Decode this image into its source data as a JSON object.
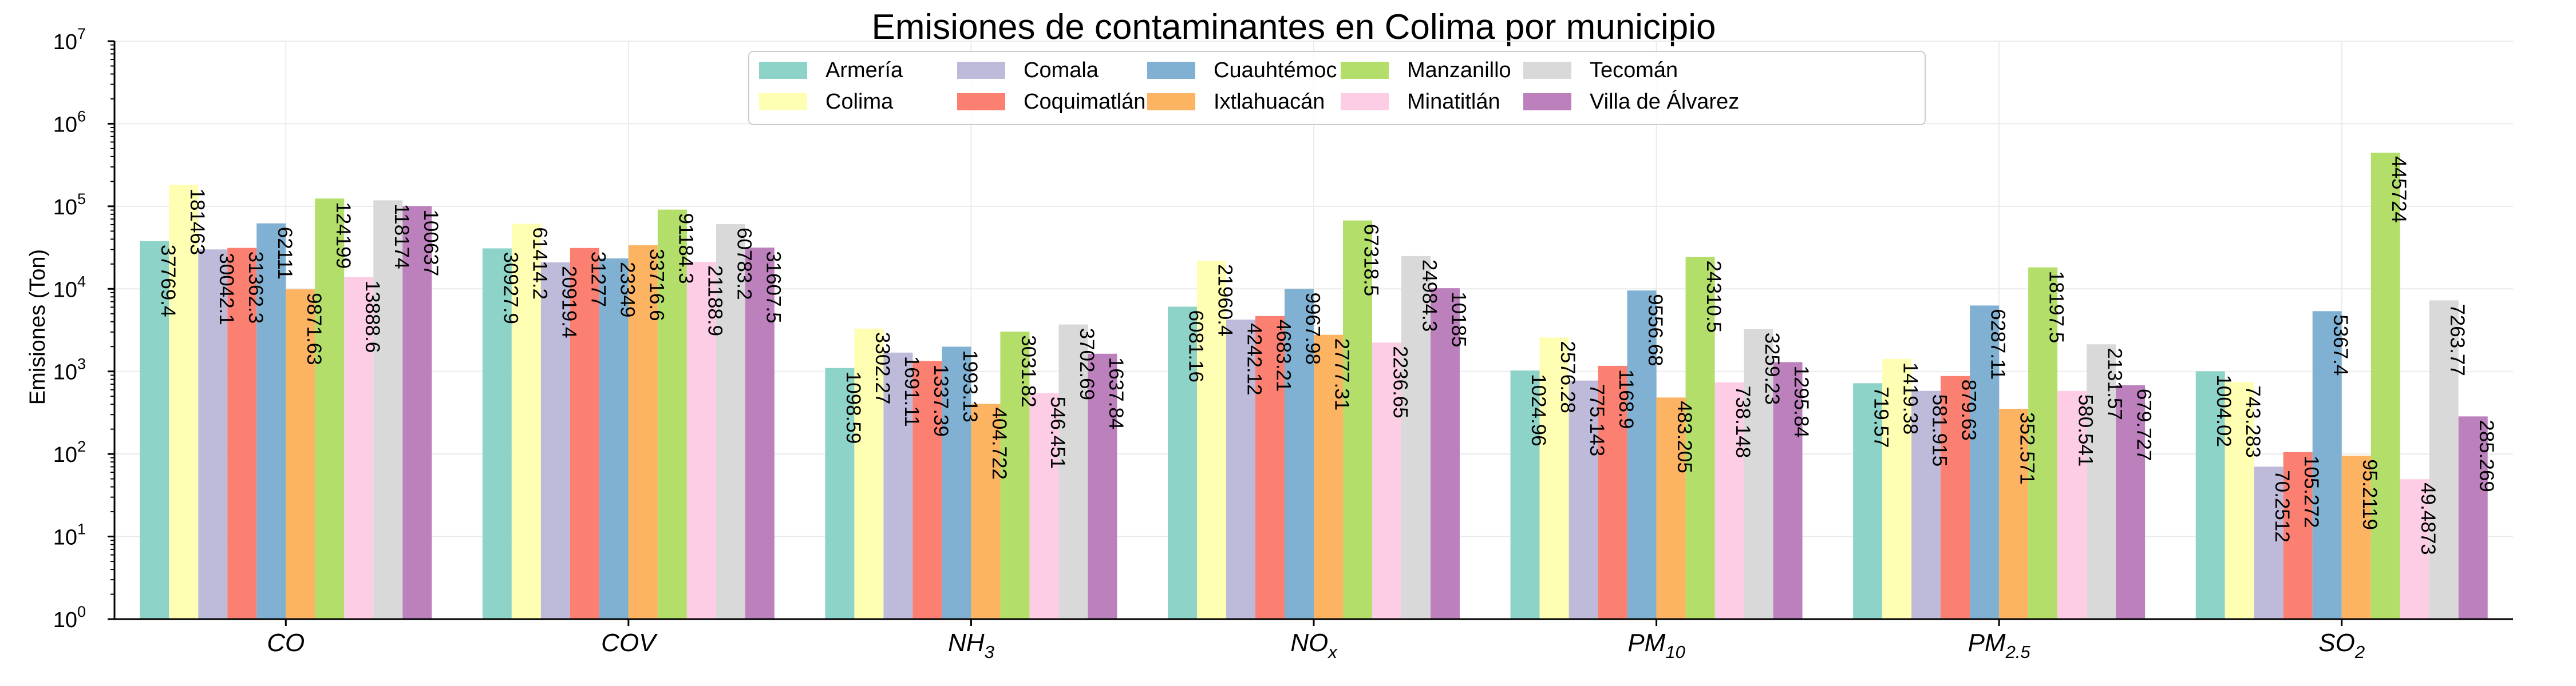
{
  "chart_data": {
    "type": "bar",
    "title": "Emisiones de contaminantes en Colima por municipio",
    "xlabel": "",
    "ylabel": "Emisiones (Ton)",
    "yscale": "log",
    "ylim": [
      1,
      10000000
    ],
    "yticks": [
      {
        "value": 1,
        "base": "10",
        "exp": "0"
      },
      {
        "value": 10,
        "base": "10",
        "exp": "1"
      },
      {
        "value": 100,
        "base": "10",
        "exp": "2"
      },
      {
        "value": 1000,
        "base": "10",
        "exp": "3"
      },
      {
        "value": 10000,
        "base": "10",
        "exp": "4"
      },
      {
        "value": 100000,
        "base": "10",
        "exp": "5"
      },
      {
        "value": 1000000,
        "base": "10",
        "exp": "6"
      },
      {
        "value": 10000000,
        "base": "10",
        "exp": "7"
      }
    ],
    "grid": true,
    "legend_position": "top-center",
    "categories": [
      {
        "label": "CO",
        "base": "CO",
        "sub": ""
      },
      {
        "label": "COV",
        "base": "COV",
        "sub": ""
      },
      {
        "label": "NH3",
        "base": "NH",
        "sub": "3"
      },
      {
        "label": "NOx",
        "base": "NO",
        "sub": "x"
      },
      {
        "label": "PM10",
        "base": "PM",
        "sub": "10"
      },
      {
        "label": "PM2.5",
        "base": "PM",
        "sub": "2.5"
      },
      {
        "label": "SO2",
        "base": "SO",
        "sub": "2"
      }
    ],
    "series": [
      {
        "name": "Armería",
        "color": "#8dd3c7",
        "values": [
          37769.4,
          30927.9,
          1098.59,
          6081.16,
          1024.96,
          719.57,
          1004.02
        ],
        "labels": [
          "37769.4",
          "30927.9",
          "1098.59",
          "6081.16",
          "1024.96",
          "719.57",
          "1004.02"
        ]
      },
      {
        "name": "Colima",
        "color": "#ffffb3",
        "values": [
          181463,
          61414.2,
          3302.27,
          21960.4,
          2576.28,
          1419.38,
          743.283
        ],
        "labels": [
          "181463",
          "61414.2",
          "3302.27",
          "21960.4",
          "2576.28",
          "1419.38",
          "743.283"
        ]
      },
      {
        "name": "Comala",
        "color": "#bebada",
        "values": [
          30042.1,
          20919.4,
          1691.11,
          4242.12,
          775.143,
          581.915,
          70.2512
        ],
        "labels": [
          "30042.1",
          "20919.4",
          "1691.11",
          "4242.12",
          "775.143",
          "581.915",
          "70.2512"
        ]
      },
      {
        "name": "Coquimatlán",
        "color": "#fb8072",
        "values": [
          31362.3,
          31277,
          1337.39,
          4683.21,
          1168.9,
          879.63,
          105.272
        ],
        "labels": [
          "31362.3",
          "31277",
          "1337.39",
          "4683.21",
          "1168.9",
          "879.63",
          "105.272"
        ]
      },
      {
        "name": "Cuauhtémoc",
        "color": "#80b1d3",
        "values": [
          62111,
          23349,
          1993.13,
          9967.98,
          9556.68,
          6287.11,
          5367.4
        ],
        "labels": [
          "62111",
          "23349",
          "1993.13",
          "9967.98",
          "9556.68",
          "6287.11",
          "5367.4"
        ]
      },
      {
        "name": "Ixtlahuacán",
        "color": "#fdb462",
        "values": [
          9871.63,
          33716.6,
          404.722,
          2777.31,
          483.205,
          352.571,
          95.2119
        ],
        "labels": [
          "9871.63",
          "33716.6",
          "404.722",
          "2777.31",
          "483.205",
          "352.571",
          "95.2119"
        ]
      },
      {
        "name": "Manzanillo",
        "color": "#b3de69",
        "values": [
          124199,
          91184.3,
          3031.82,
          67318.5,
          24310.5,
          18197.5,
          445724
        ],
        "labels": [
          "124199",
          "91184.3",
          "3031.82",
          "67318.5",
          "24310.5",
          "18197.5",
          "445724"
        ]
      },
      {
        "name": "Minatitlán",
        "color": "#fccde5",
        "values": [
          13888.6,
          21188.9,
          546.451,
          2236.65,
          738.148,
          580.541,
          49.4873
        ],
        "labels": [
          "13888.6",
          "21188.9",
          "546.451",
          "2236.65",
          "738.148",
          "580.541",
          "49.4873"
        ]
      },
      {
        "name": "Tecomán",
        "color": "#d9d9d9",
        "values": [
          118174,
          60783.2,
          3702.69,
          24984.3,
          3259.23,
          2131.57,
          7263.77
        ],
        "labels": [
          "118174",
          "60783.2",
          "3702.69",
          "24984.3",
          "3259.23",
          "2131.57",
          "7263.77"
        ]
      },
      {
        "name": "Villa de Álvarez",
        "color": "#bc80bd",
        "values": [
          100637,
          31607.5,
          1637.84,
          10185,
          1295.84,
          679.727,
          285.269
        ],
        "labels": [
          "100637",
          "31607.5",
          "1637.84",
          "10185",
          "1295.84",
          "679.727",
          "285.269"
        ]
      }
    ]
  }
}
